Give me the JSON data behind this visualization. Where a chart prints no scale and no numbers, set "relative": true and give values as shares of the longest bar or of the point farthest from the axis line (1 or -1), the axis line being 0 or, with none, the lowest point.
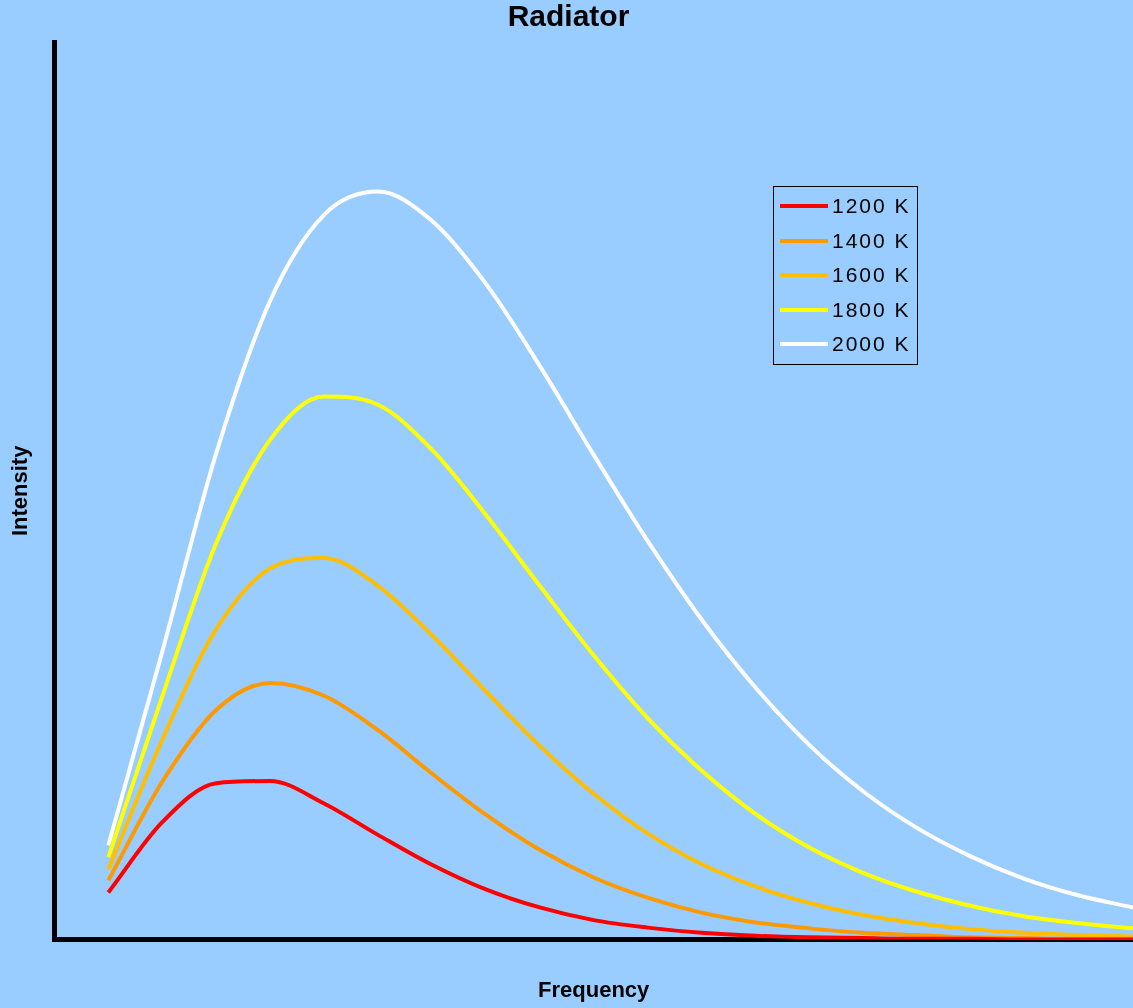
{
  "chart_data": {
    "type": "line",
    "title": "Radiator",
    "xlabel": "Frequency",
    "ylabel": "Intensity",
    "relative": true,
    "legend": "top right",
    "marker": "none",
    "line_style": "solid",
    "grid": false,
    "categories": [
      null,
      null,
      null,
      null,
      null,
      null,
      null,
      null,
      null,
      null,
      null,
      null,
      null,
      null,
      null,
      null,
      null,
      null,
      null,
      null,
      null
    ],
    "series": [
      {
        "name": "1200 K",
        "color": "#ff0000",
        "values": [
          null,
          0.063,
          0.157,
          0.209,
          0.212,
          0.182,
          0.14,
          0.1,
          0.067,
          0.043,
          0.026,
          0.016,
          0.009,
          0.005,
          0.003,
          0.002,
          0.001,
          0.001,
          0,
          0,
          0
        ]
      },
      {
        "name": "1400 K",
        "color": "#ff9900",
        "values": [
          null,
          0.079,
          0.211,
          0.307,
          0.343,
          0.326,
          0.28,
          0.222,
          0.167,
          0.12,
          0.083,
          0.056,
          0.036,
          0.023,
          0.015,
          0.009,
          0.006,
          0.003,
          0.002,
          0.001,
          0.001
        ]
      },
      {
        "name": "1600 K",
        "color": "#ffbf00",
        "values": [
          null,
          0.094,
          0.267,
          0.415,
          0.496,
          0.51,
          0.473,
          0.407,
          0.332,
          0.259,
          0.195,
          0.142,
          0.101,
          0.071,
          0.049,
          0.033,
          0.022,
          0.014,
          0.009,
          0.006,
          0.004
        ]
      },
      {
        "name": "1800 K",
        "color": "#ffff00",
        "values": [
          null,
          0.11,
          0.325,
          0.53,
          0.668,
          0.726,
          0.715,
          0.655,
          0.568,
          0.473,
          0.38,
          0.296,
          0.226,
          0.168,
          0.123,
          0.089,
          0.064,
          0.045,
          0.031,
          0.022,
          0.015
        ]
      },
      {
        "name": "2000 K",
        "color": "#ffffff",
        "values": [
          null,
          0.126,
          0.385,
          0.65,
          0.854,
          0.969,
          1,
          0.961,
          0.877,
          0.767,
          0.648,
          0.533,
          0.428,
          0.337,
          0.26,
          0.198,
          0.149,
          0.111,
          0.081,
          0.059,
          0.043
        ]
      }
    ]
  }
}
